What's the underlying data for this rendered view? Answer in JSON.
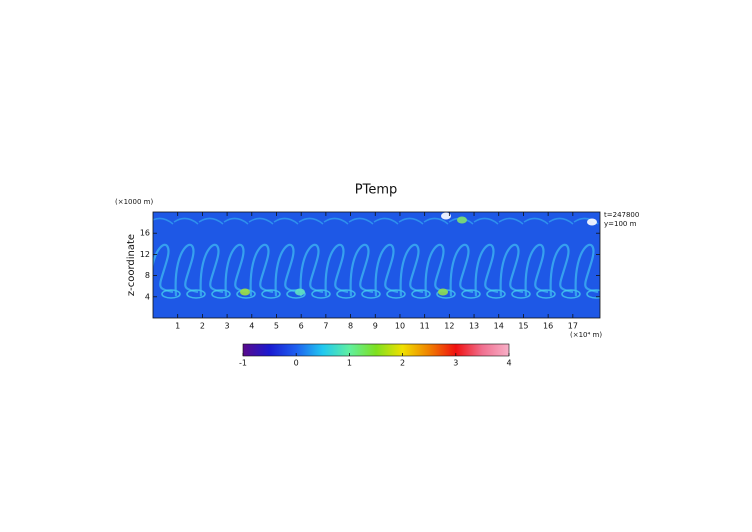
{
  "chart_data": {
    "type": "heatmap",
    "title": "PTemp",
    "y_label": "z-coordinate",
    "x_unit": "(×10⁴ m)",
    "y_unit": "(×1000 m)",
    "annotations": [
      "t=247800",
      "y=100 m"
    ],
    "xlim": [
      0,
      18.1
    ],
    "xticks": [
      1,
      2,
      3,
      4,
      5,
      6,
      7,
      8,
      9,
      10,
      11,
      12,
      13,
      14,
      15,
      16,
      17
    ],
    "ylim": [
      0,
      20
    ],
    "yticks": [
      4,
      8,
      12,
      16
    ],
    "colorbar": {
      "lim": [
        -1,
        4
      ],
      "ticks": [
        -1,
        0,
        1,
        2,
        3,
        4
      ],
      "colors": [
        "#5a0a8c",
        "#1a1ad0",
        "#1e60f0",
        "#20c8f0",
        "#60f0a0",
        "#7ee020",
        "#f0e000",
        "#f08000",
        "#f01010",
        "#f07090",
        "#f8b0c8"
      ]
    }
  }
}
